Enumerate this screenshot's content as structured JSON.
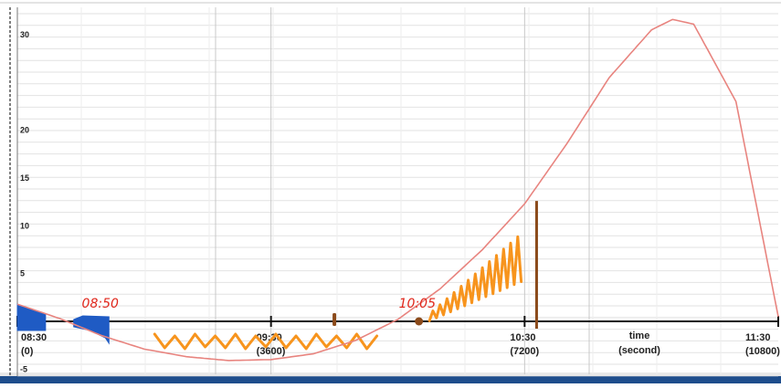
{
  "chart_data": {
    "type": "line",
    "title": "",
    "xlabel": "time (second)",
    "ylabel": "",
    "xlim": [
      0,
      10800
    ],
    "ylim": [
      -5,
      32
    ],
    "grid": true,
    "y_ticks": [
      {
        "value": 30,
        "label": "30"
      },
      {
        "value": 20,
        "label": "20"
      },
      {
        "value": 15,
        "label": "15"
      },
      {
        "value": 10,
        "label": "10"
      },
      {
        "value": 5,
        "label": "5"
      },
      {
        "value": -5,
        "label": "-5"
      }
    ],
    "x_ticks": [
      {
        "value": 0,
        "time": "08:30",
        "seconds": "(0)"
      },
      {
        "value": 3600,
        "time": "09:30",
        "seconds": "(3600)"
      },
      {
        "value": 7200,
        "time": "10:30",
        "seconds": "(7200)"
      },
      {
        "value": 10800,
        "time": "11:30",
        "seconds": "(10800)"
      }
    ],
    "axis_title_lines": [
      "time",
      "(second)"
    ],
    "series": [
      {
        "x": [
          0,
          600,
          1200,
          1800,
          2400,
          3000,
          3600,
          4200,
          4800,
          5400,
          6000,
          6600,
          7200,
          7800,
          8400,
          9000,
          9300,
          9600,
          10200,
          10800
        ],
        "y": [
          1.8,
          0.3,
          -1.5,
          -2.9,
          -3.7,
          -4.1,
          -4.0,
          -3.4,
          -2.0,
          0.2,
          3.4,
          7.5,
          12.3,
          18.6,
          25.5,
          30.5,
          31.6,
          31.1,
          23.0,
          0.5
        ],
        "color": "#e8847f"
      }
    ],
    "annotations": [
      {
        "label": "08:50",
        "x": 1200,
        "color": "#e0261b"
      },
      {
        "label": "10:05",
        "x": 5700,
        "color": "#e0261b"
      }
    ],
    "markers": [
      {
        "x": 4500,
        "kind": "tick",
        "color": "#8b4a1a"
      },
      {
        "x": 5700,
        "kind": "dot",
        "color": "#8b4a1a"
      },
      {
        "x": 7370,
        "kind": "vertical-line",
        "y_top": 12.6,
        "color": "#8b4a1a"
      }
    ],
    "highlights": [
      {
        "kind": "blue-fill",
        "x_range": [
          0,
          400
        ],
        "color": "#1f5bc4"
      },
      {
        "kind": "blue-fill",
        "x_range": [
          800,
          1300
        ],
        "color": "#1f5bc4"
      },
      {
        "kind": "orange-scribble",
        "x_range": [
          2000,
          5000
        ],
        "color": "#f7941d"
      },
      {
        "kind": "orange-scribble",
        "x_range": [
          5900,
          7100
        ],
        "color": "#f7941d"
      }
    ]
  }
}
